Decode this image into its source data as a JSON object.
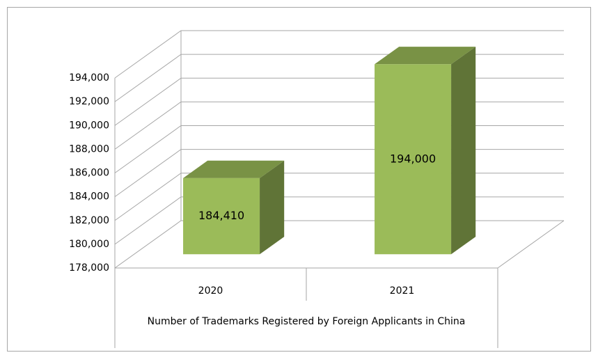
{
  "chart_data": {
    "type": "bar3d",
    "x_label": "Number of Trademarks Registered by Foreign Applicants in China",
    "categories": [
      "2020",
      "2021"
    ],
    "values": [
      184410,
      194000
    ],
    "value_labels": [
      "184,410",
      "194,000"
    ],
    "color": "#9bbb59",
    "ylim": [
      178000,
      194000
    ],
    "yticks": [
      {
        "value": 178000,
        "label": "178,000"
      },
      {
        "value": 180000,
        "label": "180,000"
      },
      {
        "value": 182000,
        "label": "182,000"
      },
      {
        "value": 184000,
        "label": "184,000"
      },
      {
        "value": 186000,
        "label": "186,000"
      },
      {
        "value": 188000,
        "label": "188,000"
      },
      {
        "value": 190000,
        "label": "190,000"
      },
      {
        "value": 192000,
        "label": "192,000"
      },
      {
        "value": 194000,
        "label": "194,000"
      }
    ],
    "grid": true
  }
}
